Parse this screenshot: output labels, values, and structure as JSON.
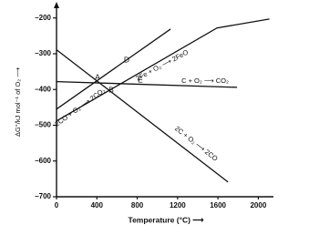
{
  "chart_data": {
    "type": "line",
    "y_label": "ΔG°/kJ mol⁻¹ of O₂ ⟶",
    "x_label": "Temperature (°C) ⟶",
    "xlim": [
      0,
      2150
    ],
    "ylim": [
      -700,
      -165
    ],
    "xticks": [
      0,
      400,
      800,
      1200,
      1600,
      2000
    ],
    "yticks": [
      {
        "value": -200,
        "label": "–200"
      },
      {
        "value": -300,
        "label": "–300"
      },
      {
        "value": -400,
        "label": "–400"
      },
      {
        "value": -500,
        "label": "–500"
      },
      {
        "value": -600,
        "label": "–600"
      },
      {
        "value": -700,
        "label": "–700"
      }
    ],
    "series": [
      {
        "name": "2Fe + O₂ ⟶ 2FeO",
        "color": "#111",
        "x": [
          0,
          1590,
          2110
        ],
        "values": [
          -488,
          -228,
          -203
        ]
      },
      {
        "name": "C + O₂ ⟶ CO₂",
        "color": "#111",
        "x": [
          0,
          1790
        ],
        "values": [
          -378,
          -394
        ]
      },
      {
        "name": "2CO + O₂ ⟶ 2CO₂",
        "color": "#111",
        "x": [
          0,
          1130
        ],
        "values": [
          -455,
          -231
        ]
      },
      {
        "name": "2C + O₂ ⟶ 2CO",
        "color": "#111",
        "x": [
          0,
          1700
        ],
        "values": [
          -289,
          -659
        ]
      }
    ],
    "point_labels": [
      "A",
      "B",
      "D",
      "E"
    ]
  }
}
